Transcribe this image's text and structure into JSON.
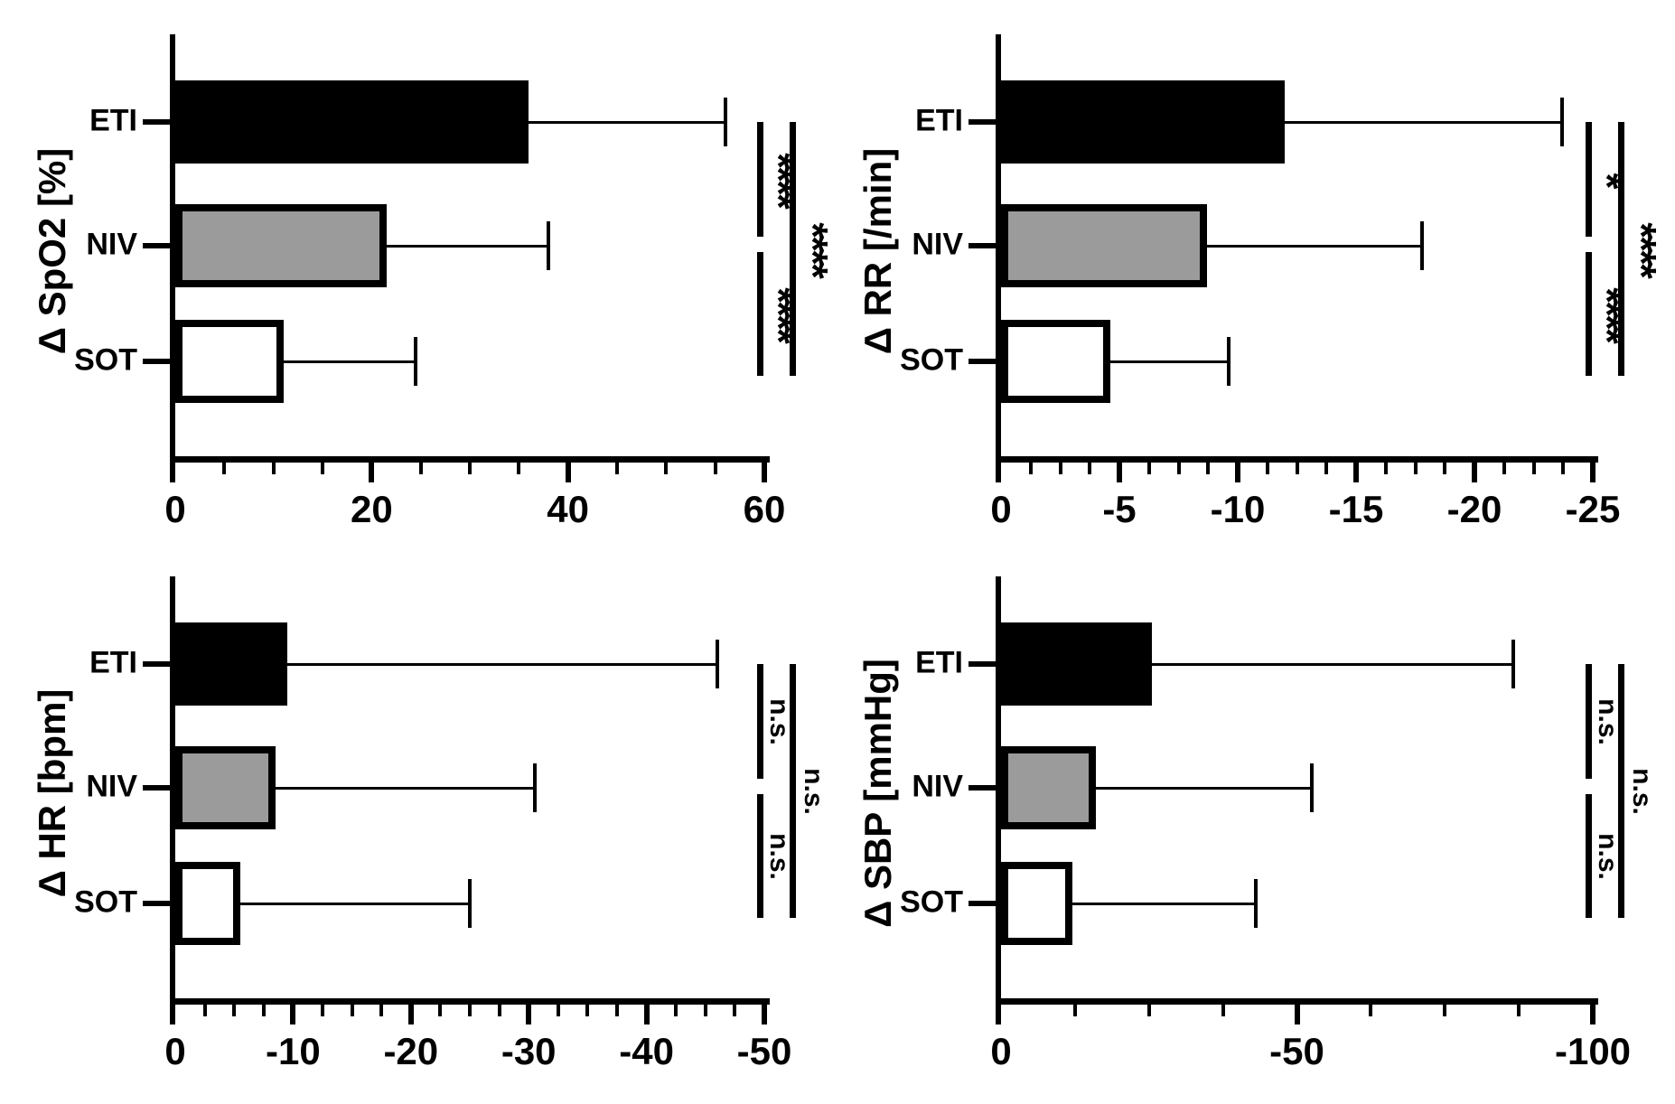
{
  "figure": {
    "kind": "four-panel horizontal bar figure",
    "background": "#FFFFFF",
    "panel_count": 4
  },
  "chart_data": {
    "type": "bar",
    "orientation": "horizontal",
    "grid": false,
    "legend": "none",
    "error_bars": "one-sided SD whisker with end cap",
    "categories": [
      "ETI",
      "NIV",
      "SOT"
    ],
    "bar_styles": [
      {
        "category": "ETI",
        "fill": "#000000",
        "border": "#000000"
      },
      {
        "category": "NIV",
        "fill": "#9B9B9B",
        "border": "#000000"
      },
      {
        "category": "SOT",
        "fill": "#FFFFFF",
        "border": "#000000"
      }
    ],
    "panels": [
      {
        "id": "spo2",
        "ylabel": "Δ SpO2 [%]",
        "xlim": [
          0,
          60
        ],
        "major_ticks": [
          0,
          20,
          40,
          60
        ],
        "tick_labels": [
          "0",
          "20",
          "40",
          "60"
        ],
        "minor_tick_step": 5,
        "series": [
          {
            "category": "ETI",
            "value": 36,
            "error_cap": 56
          },
          {
            "category": "NIV",
            "value": 21.5,
            "error_cap": 38
          },
          {
            "category": "SOT",
            "value": 11,
            "error_cap": 24.5
          }
        ],
        "significance": [
          {
            "between": [
              "ETI",
              "NIV"
            ],
            "label": "****"
          },
          {
            "between": [
              "NIV",
              "SOT"
            ],
            "label": "****"
          },
          {
            "between": [
              "ETI",
              "SOT"
            ],
            "label": "****"
          }
        ]
      },
      {
        "id": "rr",
        "ylabel": "Δ RR [/min]",
        "xlim": [
          0,
          -25
        ],
        "major_ticks": [
          0,
          -5,
          -10,
          -15,
          -20,
          -25
        ],
        "tick_labels": [
          "0",
          "-5",
          "-10",
          "-15",
          "-20",
          "-25"
        ],
        "minor_tick_step": 1.25,
        "series": [
          {
            "category": "ETI",
            "value": -12,
            "error_cap": -23.7
          },
          {
            "category": "NIV",
            "value": -8.7,
            "error_cap": -17.8
          },
          {
            "category": "SOT",
            "value": -4.6,
            "error_cap": -9.6
          }
        ],
        "significance": [
          {
            "between": [
              "ETI",
              "NIV"
            ],
            "label": "*"
          },
          {
            "between": [
              "NIV",
              "SOT"
            ],
            "label": "****"
          },
          {
            "between": [
              "ETI",
              "SOT"
            ],
            "label": "****"
          }
        ]
      },
      {
        "id": "hr",
        "ylabel": "Δ HR [bpm]",
        "xlim": [
          0,
          -50
        ],
        "major_ticks": [
          0,
          -10,
          -20,
          -30,
          -40,
          -50
        ],
        "tick_labels": [
          "0",
          "-10",
          "-20",
          "-30",
          "-40",
          "-50"
        ],
        "minor_tick_step": 2.5,
        "series": [
          {
            "category": "ETI",
            "value": -9.5,
            "error_cap": -46
          },
          {
            "category": "NIV",
            "value": -8.5,
            "error_cap": -30.5
          },
          {
            "category": "SOT",
            "value": -5.5,
            "error_cap": -25
          }
        ],
        "significance": [
          {
            "between": [
              "ETI",
              "NIV"
            ],
            "label": "n.s."
          },
          {
            "between": [
              "NIV",
              "SOT"
            ],
            "label": "n.s."
          },
          {
            "between": [
              "ETI",
              "SOT"
            ],
            "label": "n.s."
          }
        ]
      },
      {
        "id": "sbp",
        "ylabel": "Δ SBP [mmHg]",
        "xlim": [
          0,
          -100
        ],
        "major_ticks": [
          0,
          -50,
          -100
        ],
        "tick_labels": [
          "0",
          "-50",
          "-100"
        ],
        "minor_tick_step": 12.5,
        "series": [
          {
            "category": "ETI",
            "value": -25.5,
            "error_cap": -86.5
          },
          {
            "category": "NIV",
            "value": -16,
            "error_cap": -52.5
          },
          {
            "category": "SOT",
            "value": -12,
            "error_cap": -43
          }
        ],
        "significance": [
          {
            "between": [
              "ETI",
              "NIV"
            ],
            "label": "n.s."
          },
          {
            "between": [
              "NIV",
              "SOT"
            ],
            "label": "n.s."
          },
          {
            "between": [
              "ETI",
              "SOT"
            ],
            "label": "n.s."
          }
        ]
      }
    ]
  }
}
